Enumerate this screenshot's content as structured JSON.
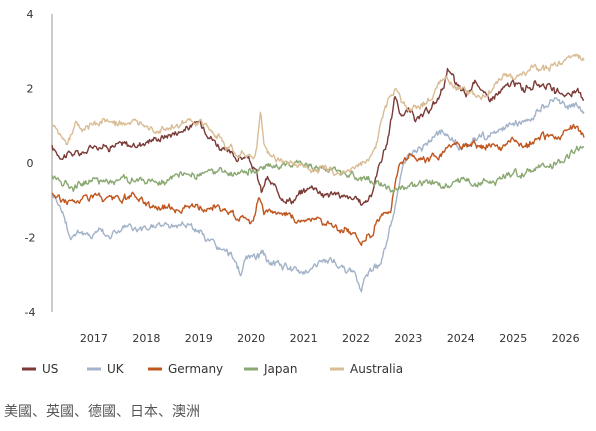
{
  "chart_data": {
    "type": "line",
    "xlabel": "",
    "ylabel": "",
    "x_range": [
      2016.2,
      2026.35
    ],
    "ylim": [
      -4,
      4
    ],
    "y_ticks": [
      4,
      2,
      0,
      -2,
      -4
    ],
    "x_ticks": [
      2017,
      2018,
      2019,
      2020,
      2021,
      2022,
      2023,
      2024,
      2025,
      2026
    ],
    "grid": false,
    "legend_position": "bottom",
    "series": [
      {
        "name": "US",
        "color": "#7a3a35",
        "points": [
          [
            2016.2,
            0.4
          ],
          [
            2016.35,
            0.2
          ],
          [
            2016.5,
            0.25
          ],
          [
            2016.75,
            0.25
          ],
          [
            2016.9,
            0.35
          ],
          [
            2017.0,
            0.5
          ],
          [
            2017.2,
            0.45
          ],
          [
            2017.5,
            0.5
          ],
          [
            2017.8,
            0.45
          ],
          [
            2018.0,
            0.6
          ],
          [
            2018.3,
            0.7
          ],
          [
            2018.6,
            0.85
          ],
          [
            2018.9,
            1.0
          ],
          [
            2019.0,
            1.1
          ],
          [
            2019.15,
            0.9
          ],
          [
            2019.3,
            0.6
          ],
          [
            2019.5,
            0.3
          ],
          [
            2019.7,
            0.15
          ],
          [
            2019.9,
            0.15
          ],
          [
            2020.0,
            0.0
          ],
          [
            2020.1,
            -0.3
          ],
          [
            2020.2,
            -0.8
          ],
          [
            2020.3,
            -0.4
          ],
          [
            2020.45,
            -0.7
          ],
          [
            2020.6,
            -0.9
          ],
          [
            2020.8,
            -1.0
          ],
          [
            2021.0,
            -0.75
          ],
          [
            2021.2,
            -0.6
          ],
          [
            2021.4,
            -0.85
          ],
          [
            2021.6,
            -0.8
          ],
          [
            2021.8,
            -0.95
          ],
          [
            2022.0,
            -1.0
          ],
          [
            2022.1,
            -1.1
          ],
          [
            2022.3,
            -0.85
          ],
          [
            2022.45,
            0.0
          ],
          [
            2022.6,
            0.6
          ],
          [
            2022.75,
            1.8
          ],
          [
            2022.85,
            1.3
          ],
          [
            2023.0,
            1.4
          ],
          [
            2023.2,
            1.15
          ],
          [
            2023.4,
            1.4
          ],
          [
            2023.6,
            1.8
          ],
          [
            2023.75,
            2.5
          ],
          [
            2023.9,
            2.1
          ],
          [
            2024.1,
            1.8
          ],
          [
            2024.3,
            2.25
          ],
          [
            2024.5,
            1.7
          ],
          [
            2024.7,
            1.85
          ],
          [
            2024.85,
            2.0
          ],
          [
            2025.0,
            2.15
          ],
          [
            2025.2,
            2.0
          ],
          [
            2025.4,
            2.1
          ],
          [
            2025.6,
            2.15
          ],
          [
            2025.8,
            1.85
          ],
          [
            2026.0,
            1.85
          ],
          [
            2026.2,
            1.9
          ],
          [
            2026.35,
            1.75
          ]
        ]
      },
      {
        "name": "UK",
        "color": "#a3b3c9",
        "points": [
          [
            2016.2,
            -0.8
          ],
          [
            2016.3,
            -1.0
          ],
          [
            2016.4,
            -1.3
          ],
          [
            2016.55,
            -2.0
          ],
          [
            2016.7,
            -1.8
          ],
          [
            2016.9,
            -2.0
          ],
          [
            2017.1,
            -1.75
          ],
          [
            2017.3,
            -1.95
          ],
          [
            2017.6,
            -1.7
          ],
          [
            2017.9,
            -1.85
          ],
          [
            2018.2,
            -1.65
          ],
          [
            2018.5,
            -1.7
          ],
          [
            2018.8,
            -1.6
          ],
          [
            2019.0,
            -1.85
          ],
          [
            2019.2,
            -2.1
          ],
          [
            2019.5,
            -2.4
          ],
          [
            2019.7,
            -2.6
          ],
          [
            2019.8,
            -3.0
          ],
          [
            2019.9,
            -2.6
          ],
          [
            2020.1,
            -2.5
          ],
          [
            2020.2,
            -2.45
          ],
          [
            2020.3,
            -2.6
          ],
          [
            2020.5,
            -2.75
          ],
          [
            2020.7,
            -2.8
          ],
          [
            2020.9,
            -2.95
          ],
          [
            2021.0,
            -2.9
          ],
          [
            2021.2,
            -2.75
          ],
          [
            2021.5,
            -2.6
          ],
          [
            2021.7,
            -2.75
          ],
          [
            2021.85,
            -2.95
          ],
          [
            2022.0,
            -3.0
          ],
          [
            2022.1,
            -3.4
          ],
          [
            2022.2,
            -2.9
          ],
          [
            2022.35,
            -2.8
          ],
          [
            2022.45,
            -2.7
          ],
          [
            2022.55,
            -2.3
          ],
          [
            2022.7,
            -1.5
          ],
          [
            2022.8,
            -0.7
          ],
          [
            2022.9,
            -0.1
          ],
          [
            2023.0,
            0.1
          ],
          [
            2023.2,
            0.4
          ],
          [
            2023.4,
            0.6
          ],
          [
            2023.6,
            0.85
          ],
          [
            2023.8,
            0.65
          ],
          [
            2024.0,
            0.4
          ],
          [
            2024.2,
            0.6
          ],
          [
            2024.4,
            0.75
          ],
          [
            2024.6,
            0.7
          ],
          [
            2024.8,
            0.9
          ],
          [
            2025.0,
            1.0
          ],
          [
            2025.2,
            1.1
          ],
          [
            2025.4,
            1.3
          ],
          [
            2025.6,
            1.5
          ],
          [
            2025.8,
            1.75
          ],
          [
            2026.0,
            1.5
          ],
          [
            2026.2,
            1.6
          ],
          [
            2026.35,
            1.4
          ]
        ]
      },
      {
        "name": "Germany",
        "color": "#c0561e",
        "points": [
          [
            2016.2,
            -0.8
          ],
          [
            2016.4,
            -1.0
          ],
          [
            2016.6,
            -1.05
          ],
          [
            2016.8,
            -0.95
          ],
          [
            2017.0,
            -0.85
          ],
          [
            2017.2,
            -1.0
          ],
          [
            2017.5,
            -1.0
          ],
          [
            2017.8,
            -0.9
          ],
          [
            2018.0,
            -1.1
          ],
          [
            2018.3,
            -1.2
          ],
          [
            2018.6,
            -1.2
          ],
          [
            2018.9,
            -1.15
          ],
          [
            2019.1,
            -1.3
          ],
          [
            2019.3,
            -1.15
          ],
          [
            2019.5,
            -1.3
          ],
          [
            2019.7,
            -1.4
          ],
          [
            2019.9,
            -1.45
          ],
          [
            2020.05,
            -1.55
          ],
          [
            2020.15,
            -0.9
          ],
          [
            2020.25,
            -1.3
          ],
          [
            2020.4,
            -1.25
          ],
          [
            2020.6,
            -1.4
          ],
          [
            2020.8,
            -1.5
          ],
          [
            2021.0,
            -1.55
          ],
          [
            2021.2,
            -1.45
          ],
          [
            2021.4,
            -1.6
          ],
          [
            2021.6,
            -1.75
          ],
          [
            2021.8,
            -1.8
          ],
          [
            2022.0,
            -1.95
          ],
          [
            2022.1,
            -2.1
          ],
          [
            2022.2,
            -1.9
          ],
          [
            2022.3,
            -2.0
          ],
          [
            2022.4,
            -1.5
          ],
          [
            2022.55,
            -1.4
          ],
          [
            2022.65,
            -1.3
          ],
          [
            2022.75,
            -0.5
          ],
          [
            2022.85,
            0.1
          ],
          [
            2022.95,
            0.05
          ],
          [
            2023.05,
            0.3
          ],
          [
            2023.2,
            0.0
          ],
          [
            2023.4,
            0.1
          ],
          [
            2023.6,
            0.2
          ],
          [
            2023.8,
            0.55
          ],
          [
            2024.0,
            0.4
          ],
          [
            2024.2,
            0.45
          ],
          [
            2024.4,
            0.4
          ],
          [
            2024.6,
            0.5
          ],
          [
            2024.8,
            0.35
          ],
          [
            2025.0,
            0.6
          ],
          [
            2025.2,
            0.45
          ],
          [
            2025.4,
            0.55
          ],
          [
            2025.6,
            0.7
          ],
          [
            2025.8,
            0.75
          ],
          [
            2026.0,
            0.8
          ],
          [
            2026.2,
            0.95
          ],
          [
            2026.35,
            0.7
          ]
        ]
      },
      {
        "name": "Japan",
        "color": "#8aa872",
        "points": [
          [
            2016.2,
            -0.35
          ],
          [
            2016.4,
            -0.5
          ],
          [
            2016.6,
            -0.6
          ],
          [
            2016.8,
            -0.5
          ],
          [
            2017.0,
            -0.45
          ],
          [
            2017.3,
            -0.5
          ],
          [
            2017.6,
            -0.4
          ],
          [
            2017.9,
            -0.5
          ],
          [
            2018.1,
            -0.55
          ],
          [
            2018.4,
            -0.5
          ],
          [
            2018.7,
            -0.35
          ],
          [
            2019.0,
            -0.3
          ],
          [
            2019.3,
            -0.25
          ],
          [
            2019.6,
            -0.3
          ],
          [
            2019.9,
            -0.25
          ],
          [
            2020.1,
            -0.2
          ],
          [
            2020.3,
            -0.15
          ],
          [
            2020.5,
            -0.05
          ],
          [
            2020.7,
            0.0
          ],
          [
            2020.9,
            0.05
          ],
          [
            2021.1,
            -0.05
          ],
          [
            2021.3,
            -0.1
          ],
          [
            2021.5,
            -0.15
          ],
          [
            2021.7,
            -0.25
          ],
          [
            2021.9,
            -0.35
          ],
          [
            2022.1,
            -0.45
          ],
          [
            2022.3,
            -0.5
          ],
          [
            2022.5,
            -0.6
          ],
          [
            2022.7,
            -0.75
          ],
          [
            2022.9,
            -0.65
          ],
          [
            2023.1,
            -0.55
          ],
          [
            2023.3,
            -0.6
          ],
          [
            2023.5,
            -0.55
          ],
          [
            2023.7,
            -0.7
          ],
          [
            2023.9,
            -0.5
          ],
          [
            2024.1,
            -0.45
          ],
          [
            2024.3,
            -0.55
          ],
          [
            2024.5,
            -0.45
          ],
          [
            2024.7,
            -0.5
          ],
          [
            2024.9,
            -0.35
          ],
          [
            2025.1,
            -0.3
          ],
          [
            2025.3,
            -0.2
          ],
          [
            2025.5,
            -0.15
          ],
          [
            2025.7,
            -0.1
          ],
          [
            2025.9,
            0.05
          ],
          [
            2026.1,
            0.25
          ],
          [
            2026.35,
            0.45
          ]
        ]
      },
      {
        "name": "Australia",
        "color": "#d9bd96",
        "points": [
          [
            2016.2,
            1.0
          ],
          [
            2016.35,
            0.8
          ],
          [
            2016.5,
            0.6
          ],
          [
            2016.65,
            1.0
          ],
          [
            2016.8,
            0.9
          ],
          [
            2017.0,
            1.05
          ],
          [
            2017.2,
            1.15
          ],
          [
            2017.4,
            1.0
          ],
          [
            2017.6,
            1.1
          ],
          [
            2017.8,
            1.0
          ],
          [
            2018.0,
            1.1
          ],
          [
            2018.2,
            0.9
          ],
          [
            2018.4,
            1.0
          ],
          [
            2018.6,
            0.95
          ],
          [
            2018.8,
            1.1
          ],
          [
            2019.0,
            1.05
          ],
          [
            2019.2,
            0.9
          ],
          [
            2019.4,
            0.65
          ],
          [
            2019.6,
            0.4
          ],
          [
            2019.8,
            0.25
          ],
          [
            2020.0,
            0.1
          ],
          [
            2020.1,
            0.3
          ],
          [
            2020.18,
            1.45
          ],
          [
            2020.25,
            0.4
          ],
          [
            2020.4,
            0.15
          ],
          [
            2020.6,
            0.05
          ],
          [
            2020.8,
            0.0
          ],
          [
            2021.0,
            -0.1
          ],
          [
            2021.2,
            -0.2
          ],
          [
            2021.4,
            -0.15
          ],
          [
            2021.6,
            -0.25
          ],
          [
            2021.8,
            -0.2
          ],
          [
            2022.0,
            -0.1
          ],
          [
            2022.2,
            0.1
          ],
          [
            2022.35,
            0.3
          ],
          [
            2022.45,
            0.9
          ],
          [
            2022.55,
            1.4
          ],
          [
            2022.65,
            1.8
          ],
          [
            2022.75,
            2.05
          ],
          [
            2022.85,
            1.7
          ],
          [
            2023.0,
            1.5
          ],
          [
            2023.2,
            1.45
          ],
          [
            2023.4,
            1.7
          ],
          [
            2023.55,
            2.1
          ],
          [
            2023.7,
            2.3
          ],
          [
            2023.85,
            2.1
          ],
          [
            2024.0,
            2.0
          ],
          [
            2024.2,
            1.85
          ],
          [
            2024.4,
            1.75
          ],
          [
            2024.6,
            2.0
          ],
          [
            2024.8,
            2.35
          ],
          [
            2025.0,
            2.2
          ],
          [
            2025.2,
            2.4
          ],
          [
            2025.4,
            2.55
          ],
          [
            2025.6,
            2.5
          ],
          [
            2025.8,
            2.6
          ],
          [
            2026.0,
            2.75
          ],
          [
            2026.2,
            2.9
          ],
          [
            2026.35,
            2.8
          ]
        ]
      }
    ]
  },
  "footnote": "美國、英國、德國、日本、澳洲"
}
